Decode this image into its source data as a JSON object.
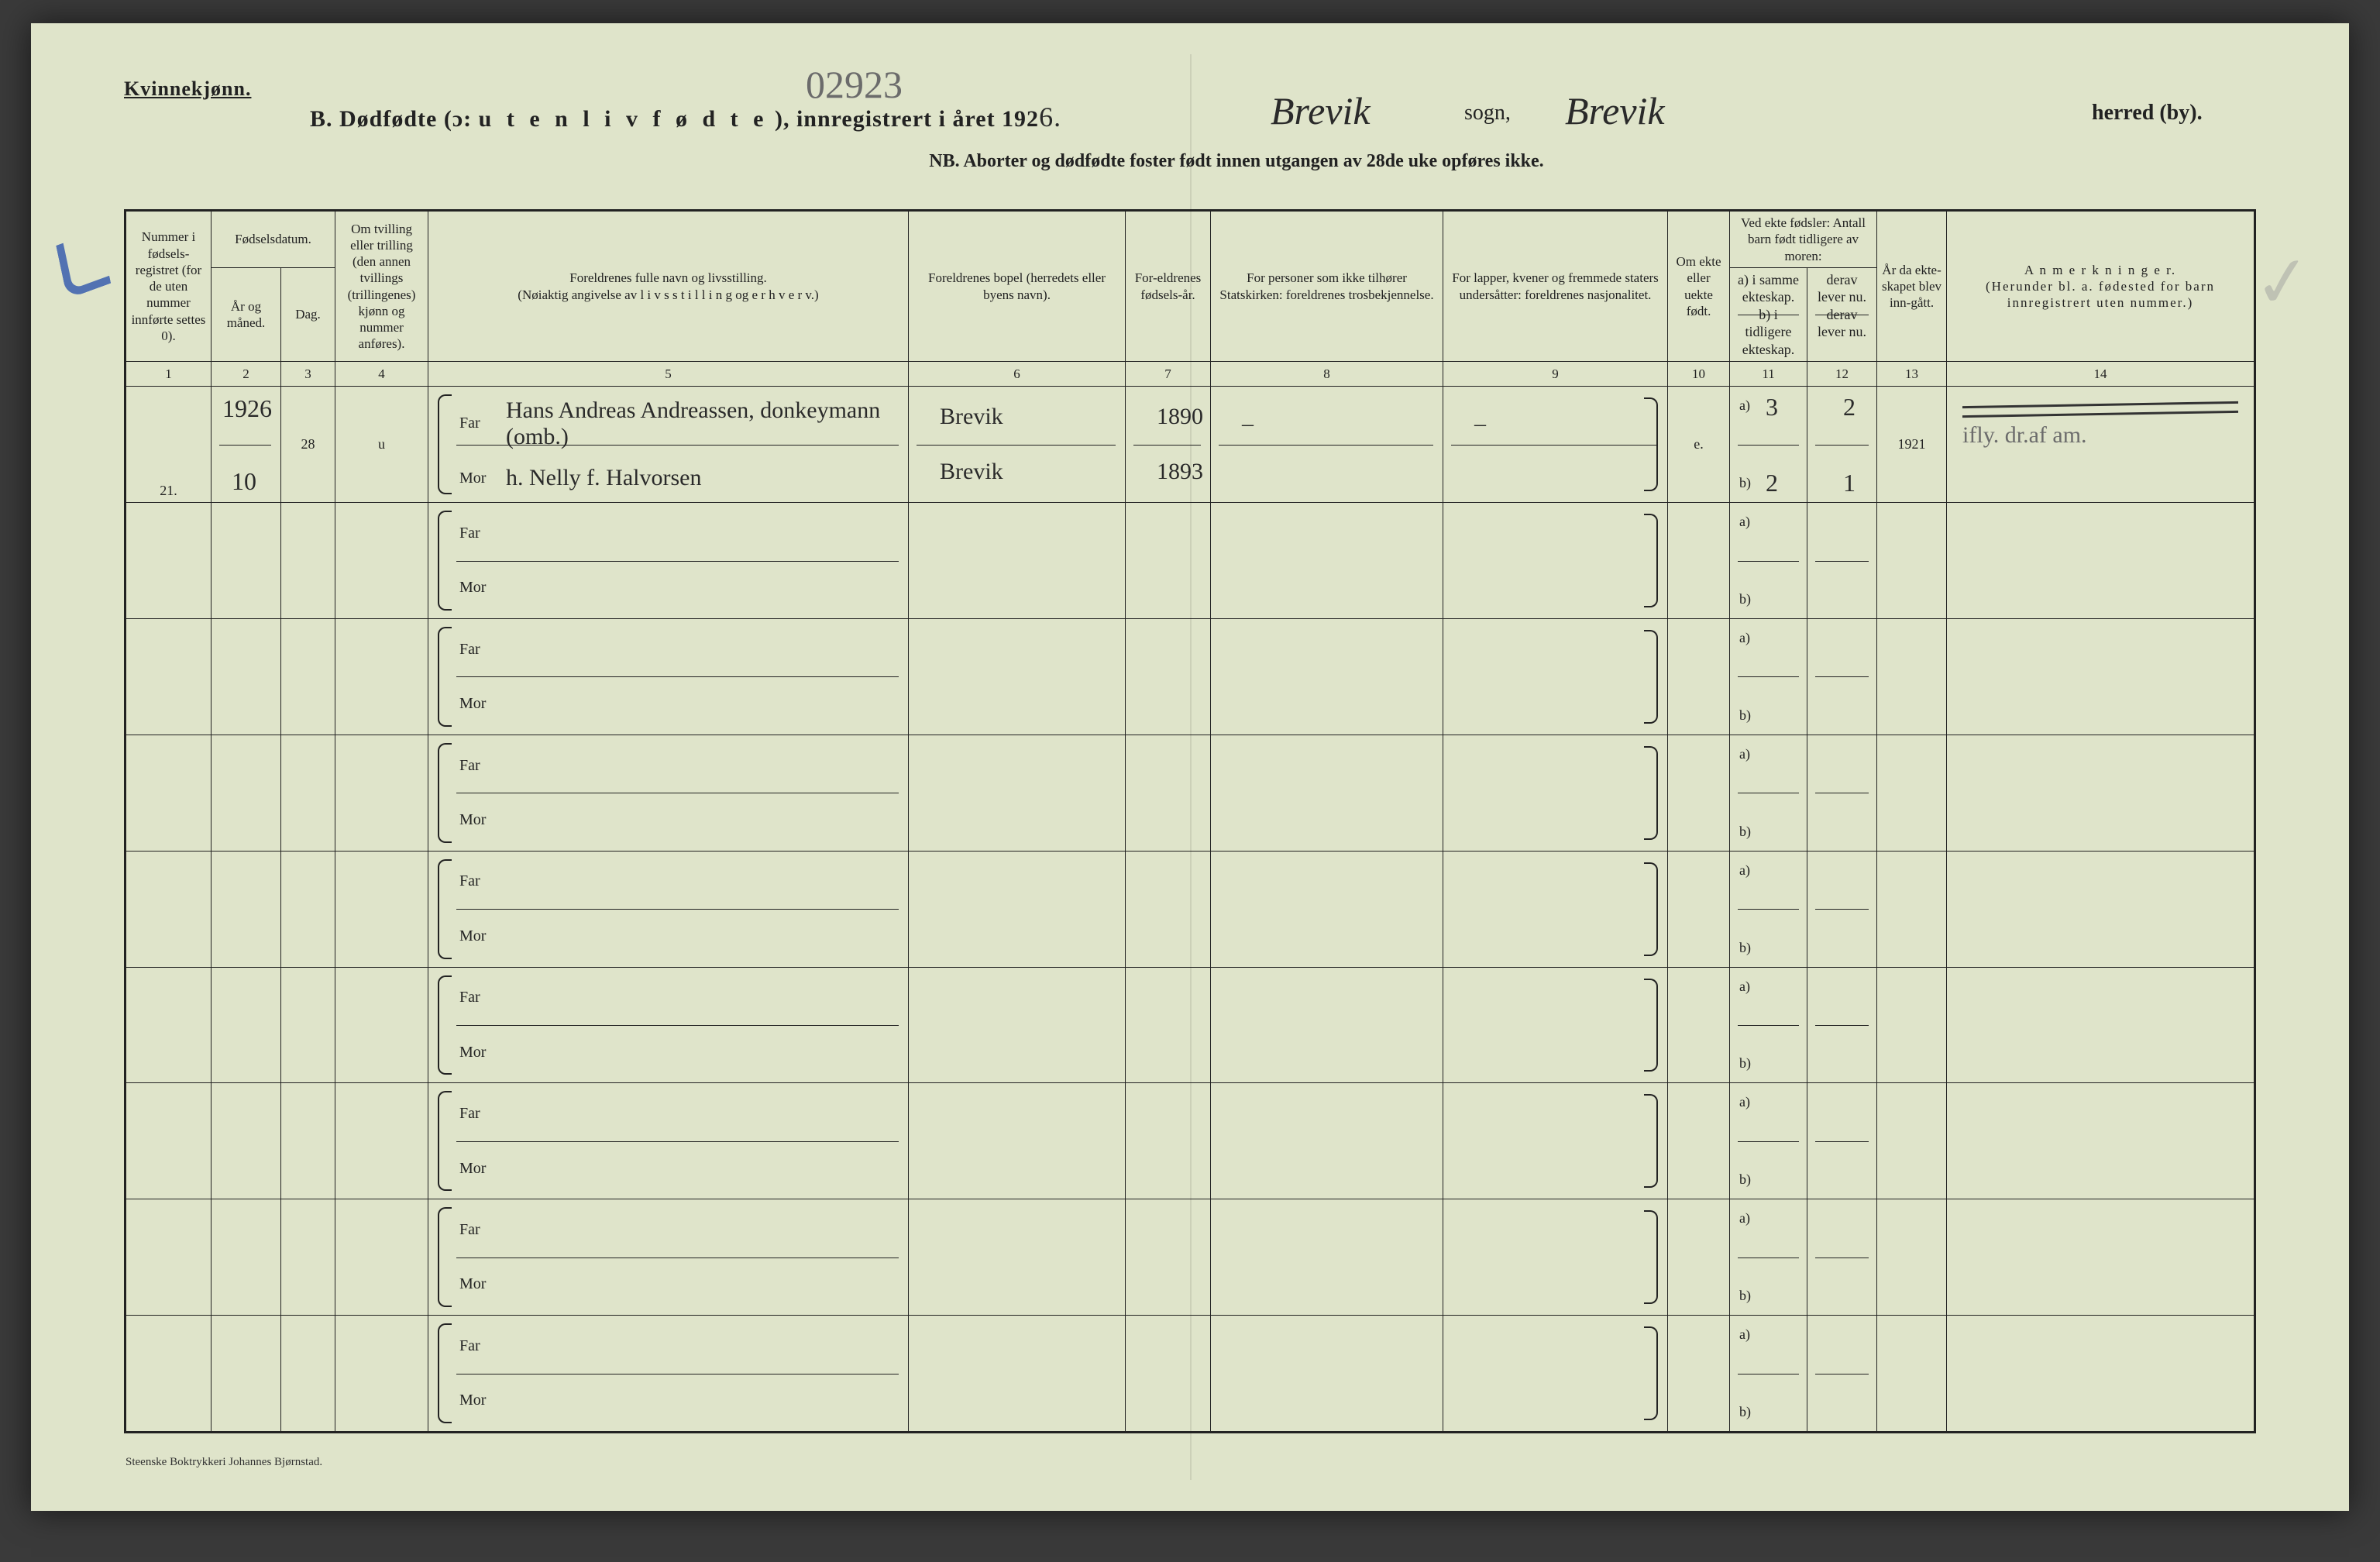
{
  "header": {
    "kvinnekjonn": "Kvinnekjønn.",
    "title_prefix": "B.  Dødfødte (ɔ:",
    "title_spaced": "u t e n  l i v  f ø d t e",
    "title_suffix_a": "),  innregistrert i året 192",
    "title_year_hand": "6.",
    "pencil_number": "02923",
    "sogn_hand": "Brevik",
    "sogn_label": "sogn,",
    "herred_hand": "Brevik",
    "herred_label": "herred (by).",
    "nb": "NB.  Aborter og dødfødte foster født innen utgangen av 28de uke opføres ikke."
  },
  "columns": {
    "c1": "Nummer i fødsels-registret (for de uten nummer innførte settes 0).",
    "c2_top": "Fødselsdatum.",
    "c2a": "År og måned.",
    "c2b": "Dag.",
    "c4": "Om tvilling eller trilling (den annen tvillings (trillingenes) kjønn og nummer anføres).",
    "c5": "Foreldrenes fulle navn og livsstilling.\n(Nøiaktig angivelse av  l i v s s t i l l i n g  og  e r h v e r v.)",
    "c6": "Foreldrenes bopel (herredets eller byens navn).",
    "c7": "For-eldrenes fødsels-år.",
    "c8": "For personer som ikke tilhører Statskirken: foreldrenes trosbekjennelse.",
    "c9": "For lapper, kvener og fremmede staters undersåtter: foreldrenes nasjonalitet.",
    "c10": "Om ekte eller uekte født.",
    "c11_top": "Ved ekte fødsler: Antall barn født tidligere av moren:",
    "c11a": "a) i samme ekteskap.",
    "c11b": "b) i tidligere ekteskap.",
    "c12a": "derav lever nu.",
    "c12b": "derav lever nu.",
    "c13": "År da ekte-skapet blev inn-gått.",
    "c14": "A n m e r k n i n g e r.\n(Herunder bl. a. fødested for barn innregistrert uten nummer.)"
  },
  "colnums": [
    "1",
    "2",
    "3",
    "4",
    "5",
    "6",
    "7",
    "8",
    "9",
    "10",
    "11",
    "12",
    "13",
    "14"
  ],
  "labels": {
    "far": "Far",
    "mor": "Mor",
    "a": "a)",
    "b": "b)"
  },
  "row1": {
    "num": "21.",
    "year": "1926",
    "month": "10",
    "day": "28",
    "twin": "u",
    "far_name": "Hans Andreas Andreassen, donkeymann (omb.)",
    "mor_name": "h. Nelly f. Halvorsen",
    "far_bopel": "Brevik",
    "mor_bopel": "Brevik",
    "far_aar": "1890",
    "mor_aar": "1893",
    "c8_far": "–",
    "c9_far": "–",
    "ekte": "e.",
    "c11a": "3",
    "c11b": "2",
    "c12a": "2",
    "c12b": "1",
    "c13": "1921",
    "c14_pencil": "ifly. dr.af am."
  },
  "footer": "Steenske Boktrykkeri Johannes Bjørnstad."
}
